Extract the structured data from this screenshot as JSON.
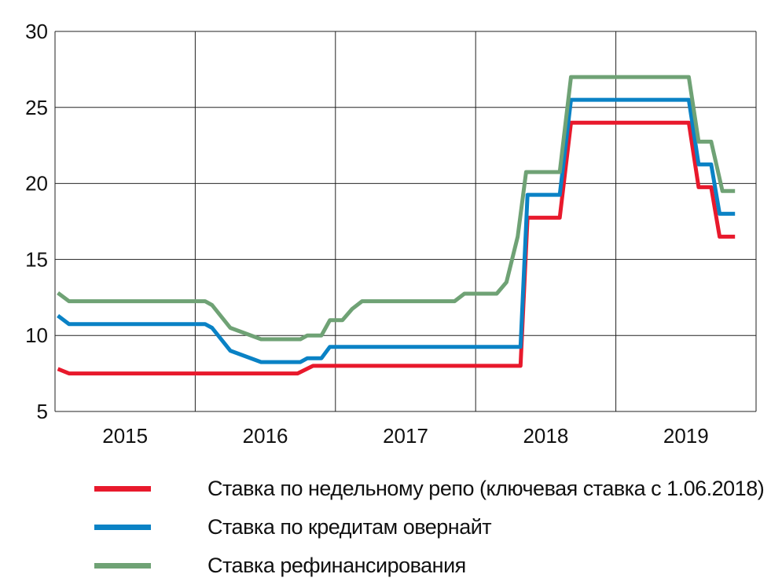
{
  "chart_data": {
    "type": "line",
    "title": "",
    "xlabel": "",
    "ylabel": "",
    "xlim": [
      2015.0,
      2020.0
    ],
    "ylim": [
      5,
      30
    ],
    "grid": true,
    "x_ticks": [
      {
        "label": "2015",
        "x": 2015.5
      },
      {
        "label": "2016",
        "x": 2016.5
      },
      {
        "label": "2017",
        "x": 2017.5
      },
      {
        "label": "2018",
        "x": 2018.5
      },
      {
        "label": "2019",
        "x": 2019.5
      }
    ],
    "y_ticks": [
      "5",
      "10",
      "15",
      "20",
      "25",
      "30"
    ],
    "legend_position": "bottom",
    "series": [
      {
        "name": "Ставка по недельному репо (ключевая ставка с 1.06.2018)",
        "color": "#e8192c",
        "points": [
          [
            2015.02,
            7.8
          ],
          [
            2015.1,
            7.5
          ],
          [
            2016.73,
            7.5
          ],
          [
            2016.84,
            8.0
          ],
          [
            2018.32,
            8.0
          ],
          [
            2018.37,
            17.75
          ],
          [
            2018.6,
            17.75
          ],
          [
            2018.68,
            24.0
          ],
          [
            2019.52,
            24.0
          ],
          [
            2019.59,
            19.75
          ],
          [
            2019.68,
            19.75
          ],
          [
            2019.74,
            16.5
          ],
          [
            2019.85,
            16.5
          ]
        ]
      },
      {
        "name": "Ставка по кредитам овернайт",
        "color": "#0a82c5",
        "points": [
          [
            2015.02,
            11.3
          ],
          [
            2015.1,
            10.75
          ],
          [
            2016.07,
            10.75
          ],
          [
            2016.12,
            10.5
          ],
          [
            2016.25,
            9.0
          ],
          [
            2016.47,
            8.25
          ],
          [
            2016.75,
            8.25
          ],
          [
            2016.8,
            8.5
          ],
          [
            2016.9,
            8.5
          ],
          [
            2016.96,
            9.25
          ],
          [
            2018.32,
            9.25
          ],
          [
            2018.37,
            19.25
          ],
          [
            2018.6,
            19.25
          ],
          [
            2018.68,
            25.5
          ],
          [
            2019.52,
            25.5
          ],
          [
            2019.59,
            21.25
          ],
          [
            2019.68,
            21.25
          ],
          [
            2019.74,
            18.0
          ],
          [
            2019.85,
            18.0
          ]
        ]
      },
      {
        "name": "Ставка рефинансирования",
        "color": "#6fa275",
        "points": [
          [
            2015.02,
            12.8
          ],
          [
            2015.1,
            12.25
          ],
          [
            2016.07,
            12.25
          ],
          [
            2016.12,
            12.0
          ],
          [
            2016.25,
            10.5
          ],
          [
            2016.47,
            9.75
          ],
          [
            2016.75,
            9.75
          ],
          [
            2016.8,
            10.0
          ],
          [
            2016.9,
            10.0
          ],
          [
            2016.96,
            11.0
          ],
          [
            2017.05,
            11.0
          ],
          [
            2017.12,
            11.75
          ],
          [
            2017.19,
            12.25
          ],
          [
            2017.85,
            12.25
          ],
          [
            2017.92,
            12.75
          ],
          [
            2018.15,
            12.75
          ],
          [
            2018.22,
            13.5
          ],
          [
            2018.3,
            16.5
          ],
          [
            2018.36,
            20.75
          ],
          [
            2018.6,
            20.75
          ],
          [
            2018.68,
            27.0
          ],
          [
            2019.52,
            27.0
          ],
          [
            2019.59,
            22.75
          ],
          [
            2019.68,
            22.75
          ],
          [
            2019.76,
            19.5
          ],
          [
            2019.85,
            19.5
          ]
        ]
      }
    ]
  }
}
